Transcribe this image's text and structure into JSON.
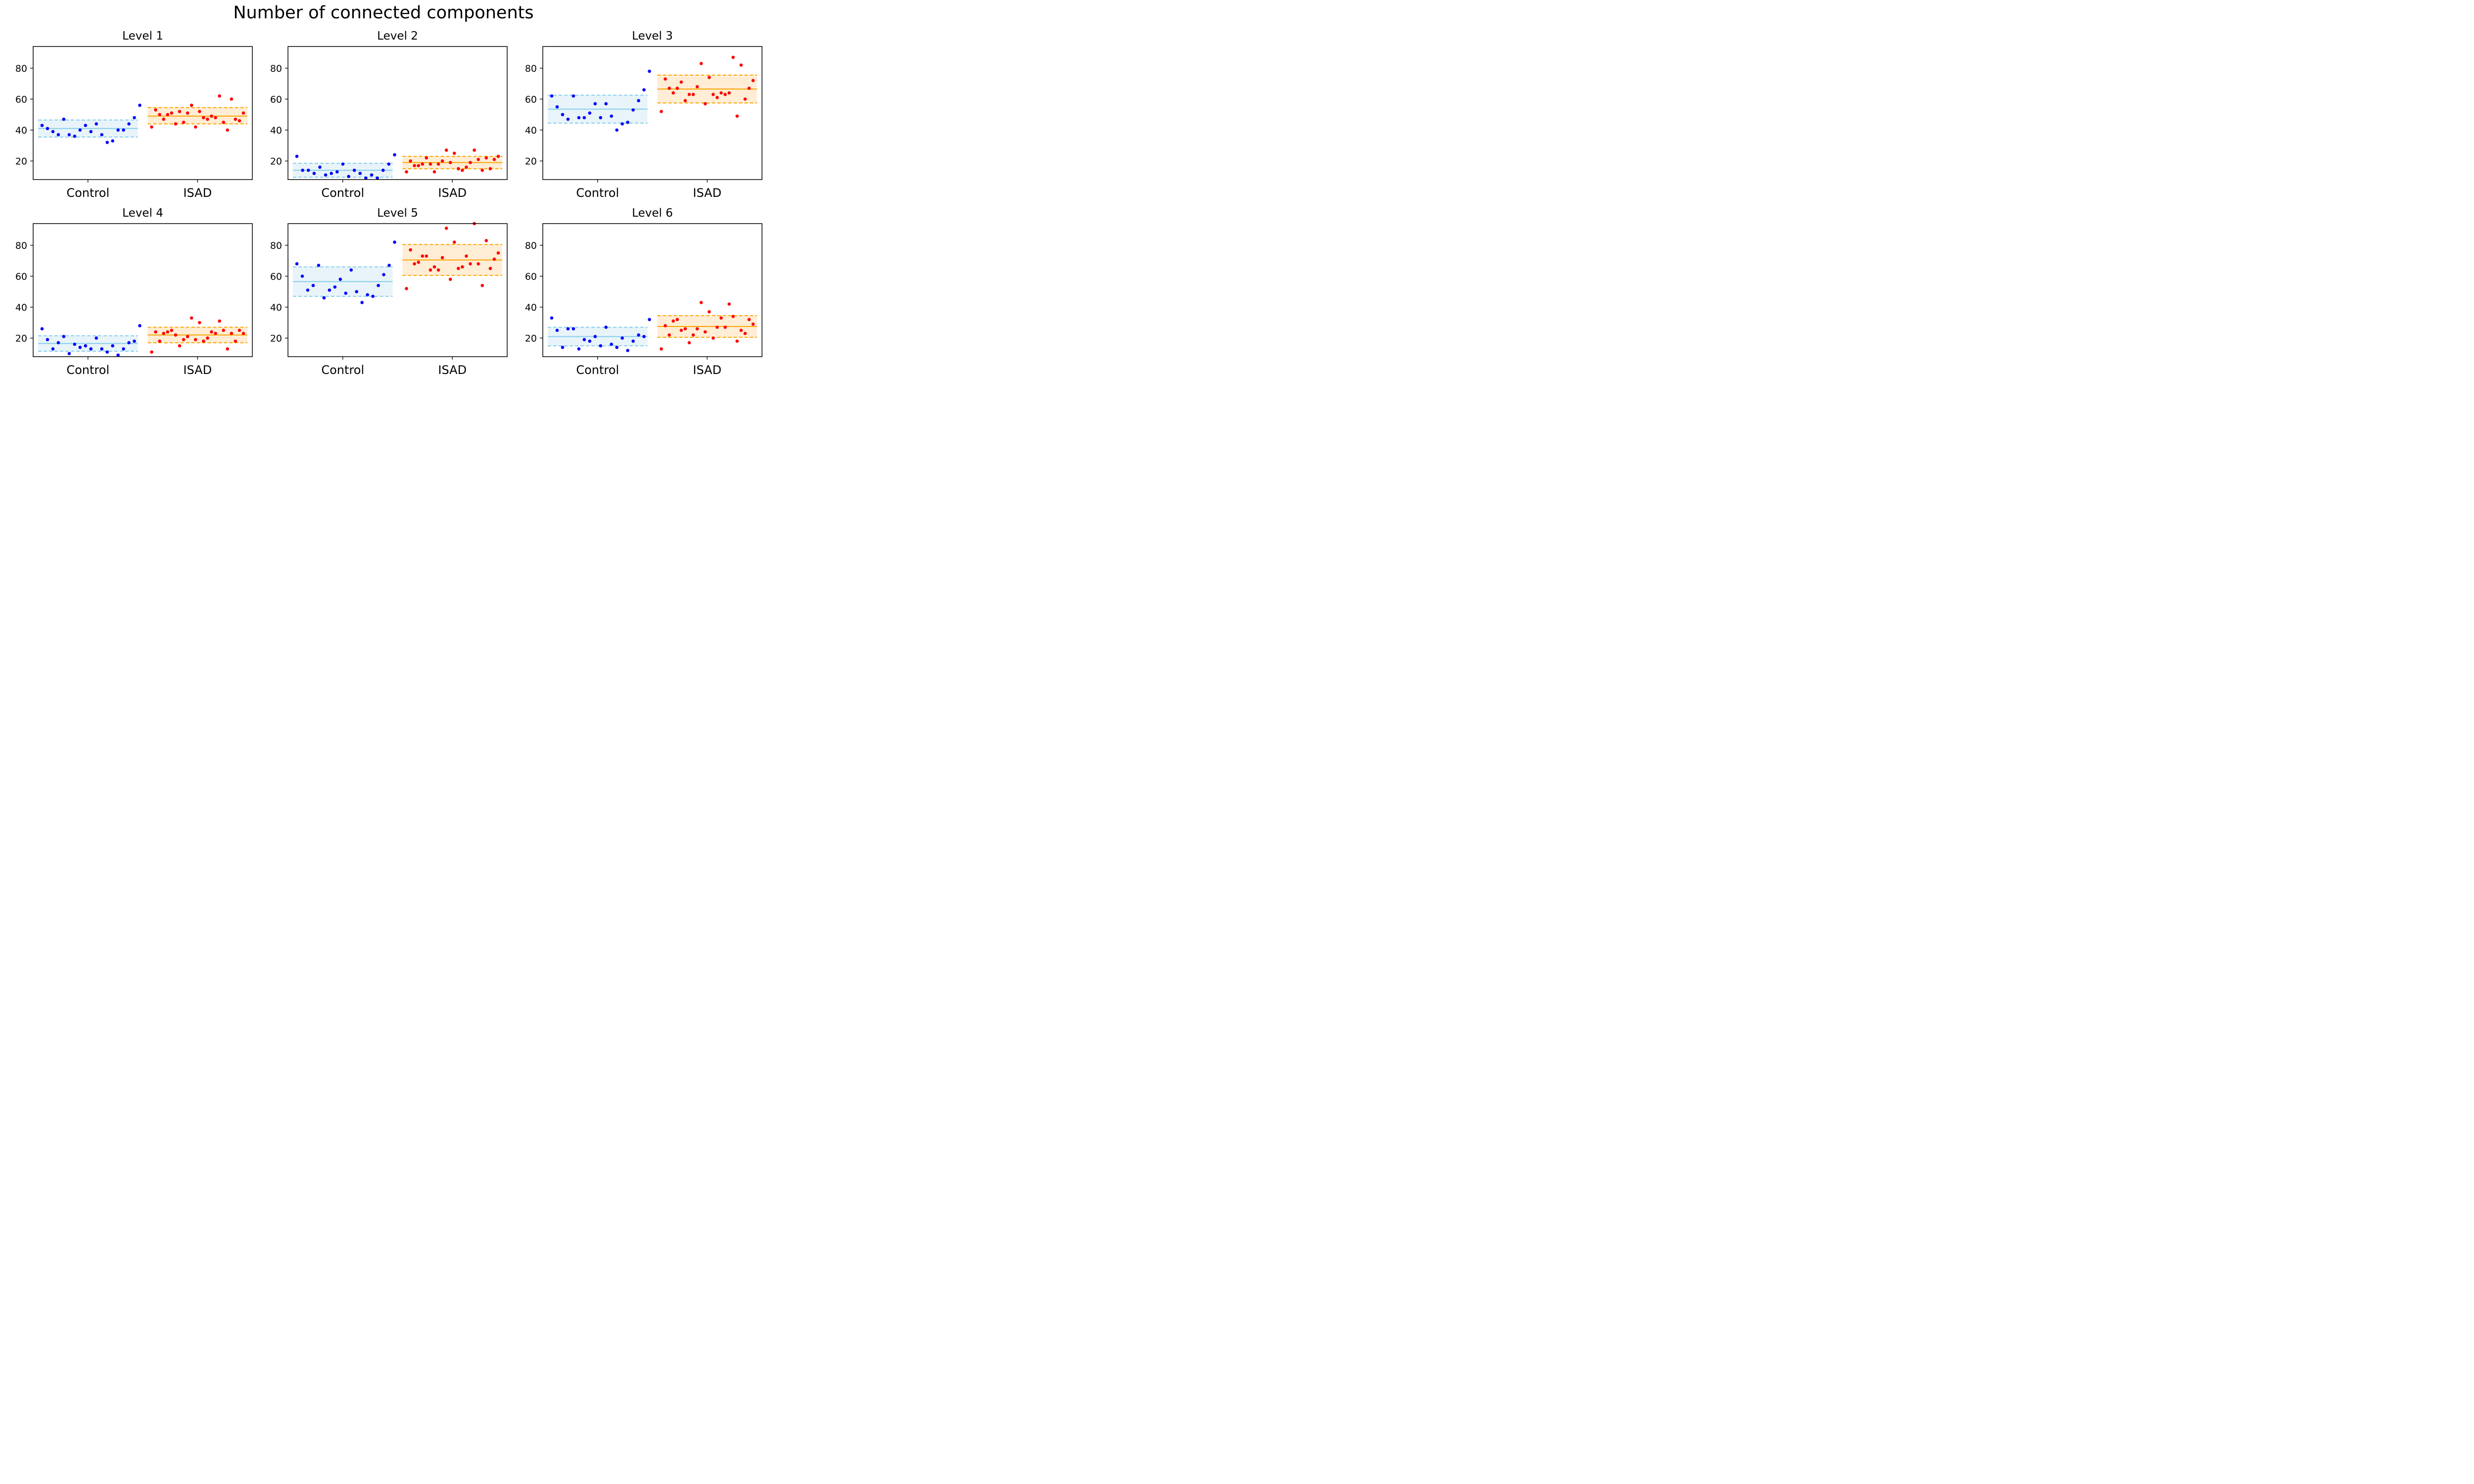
{
  "figure": {
    "title": "Number of connected components"
  },
  "colors": {
    "control_point": "#0000ff",
    "control_band": "#87ceeb",
    "control_fill": "#e8f4fa",
    "isad_point": "#ff0000",
    "isad_band": "#ffa500",
    "isad_fill": "#ffedd5"
  },
  "chart_data": [
    {
      "type": "scatter",
      "title": "Level 1",
      "categories": [
        "Control",
        "ISAD"
      ],
      "ylim": [
        8,
        94
      ],
      "yticks": [
        20,
        40,
        60,
        80
      ],
      "grid": false,
      "series": [
        {
          "name": "Control",
          "mean": 41,
          "lower": 35.5,
          "upper": 46.5,
          "values": [
            43,
            41,
            39,
            37,
            47,
            37,
            36,
            40,
            43,
            39,
            44,
            37,
            32,
            33,
            40,
            40,
            44,
            48,
            56
          ]
        },
        {
          "name": "ISAD",
          "mean": 49,
          "lower": 44,
          "upper": 54.5,
          "values": [
            42,
            53,
            50,
            47,
            50,
            51,
            44,
            52,
            45,
            51,
            56,
            42,
            52,
            48,
            47,
            49,
            48,
            62,
            45,
            40,
            60,
            47,
            46,
            51
          ]
        }
      ]
    },
    {
      "type": "scatter",
      "title": "Level 2",
      "categories": [
        "Control",
        "ISAD"
      ],
      "ylim": [
        8,
        94
      ],
      "yticks": [
        20,
        40,
        60,
        80
      ],
      "grid": false,
      "series": [
        {
          "name": "Control",
          "mean": 14,
          "lower": 9.5,
          "upper": 18.5,
          "values": [
            23,
            14,
            14,
            12,
            16,
            11,
            12,
            13,
            18,
            10,
            14,
            12,
            9,
            11,
            9,
            14,
            18,
            24
          ]
        },
        {
          "name": "ISAD",
          "mean": 19,
          "lower": 15,
          "upper": 23,
          "values": [
            13,
            20,
            17,
            17,
            18,
            22,
            18,
            13,
            18,
            20,
            27,
            19,
            25,
            15,
            14,
            16,
            19,
            27,
            21,
            14,
            22,
            15,
            21,
            23
          ]
        }
      ]
    },
    {
      "type": "scatter",
      "title": "Level 3",
      "categories": [
        "Control",
        "ISAD"
      ],
      "ylim": [
        8,
        94
      ],
      "yticks": [
        20,
        40,
        60,
        80
      ],
      "grid": false,
      "series": [
        {
          "name": "Control",
          "mean": 53.5,
          "lower": 44.5,
          "upper": 62.5,
          "values": [
            62,
            55,
            50,
            47,
            62,
            48,
            48,
            51,
            57,
            48,
            57,
            49,
            40,
            44,
            45,
            53,
            59,
            66,
            78
          ]
        },
        {
          "name": "ISAD",
          "mean": 66.5,
          "lower": 57.5,
          "upper": 75.5,
          "values": [
            52,
            73,
            67,
            64,
            67,
            71,
            59,
            63,
            63,
            68,
            83,
            57,
            74,
            63,
            61,
            64,
            63,
            64,
            87,
            49,
            82,
            60,
            67,
            72
          ]
        }
      ]
    },
    {
      "type": "scatter",
      "title": "Level 4",
      "categories": [
        "Control",
        "ISAD"
      ],
      "ylim": [
        8,
        94
      ],
      "yticks": [
        20,
        40,
        60,
        80
      ],
      "grid": false,
      "series": [
        {
          "name": "Control",
          "mean": 16.5,
          "lower": 11.5,
          "upper": 21.5,
          "values": [
            26,
            19,
            13,
            17,
            21,
            10,
            16,
            14,
            15,
            13,
            20,
            13,
            11,
            15,
            9,
            13,
            17,
            18,
            28
          ]
        },
        {
          "name": "ISAD",
          "mean": 22,
          "lower": 17,
          "upper": 27,
          "values": [
            11,
            24,
            18,
            23,
            24,
            25,
            22,
            15,
            19,
            21,
            33,
            19,
            30,
            18,
            20,
            24,
            23,
            31,
            25,
            13,
            23,
            18,
            25,
            23
          ]
        }
      ]
    },
    {
      "type": "scatter",
      "title": "Level 5",
      "categories": [
        "Control",
        "ISAD"
      ],
      "ylim": [
        8,
        94
      ],
      "yticks": [
        20,
        40,
        60,
        80
      ],
      "grid": false,
      "series": [
        {
          "name": "Control",
          "mean": 56.5,
          "lower": 47,
          "upper": 66,
          "values": [
            68,
            60,
            51,
            54,
            67,
            46,
            51,
            53,
            58,
            49,
            64,
            50,
            43,
            48,
            47,
            54,
            61,
            67,
            82
          ]
        },
        {
          "name": "ISAD",
          "mean": 70.5,
          "lower": 60.5,
          "upper": 80.5,
          "values": [
            52,
            77,
            68,
            69,
            73,
            73,
            64,
            66,
            64,
            72,
            91,
            58,
            82,
            65,
            66,
            73,
            68,
            94,
            68,
            54,
            83,
            65,
            71,
            75
          ]
        }
      ]
    },
    {
      "type": "scatter",
      "title": "Level 6",
      "categories": [
        "Control",
        "ISAD"
      ],
      "ylim": [
        8,
        94
      ],
      "yticks": [
        20,
        40,
        60,
        80
      ],
      "grid": false,
      "series": [
        {
          "name": "Control",
          "mean": 21,
          "lower": 15,
          "upper": 27,
          "values": [
            33,
            25,
            14,
            26,
            26,
            13,
            19,
            18,
            21,
            15,
            27,
            16,
            14,
            20,
            12,
            18,
            22,
            21,
            32
          ]
        },
        {
          "name": "ISAD",
          "mean": 27.5,
          "lower": 20.5,
          "upper": 34.5,
          "values": [
            13,
            28,
            22,
            31,
            32,
            25,
            26,
            17,
            22,
            26,
            43,
            24,
            37,
            20,
            27,
            33,
            27,
            42,
            34,
            18,
            25,
            23,
            32,
            29
          ]
        }
      ]
    }
  ]
}
